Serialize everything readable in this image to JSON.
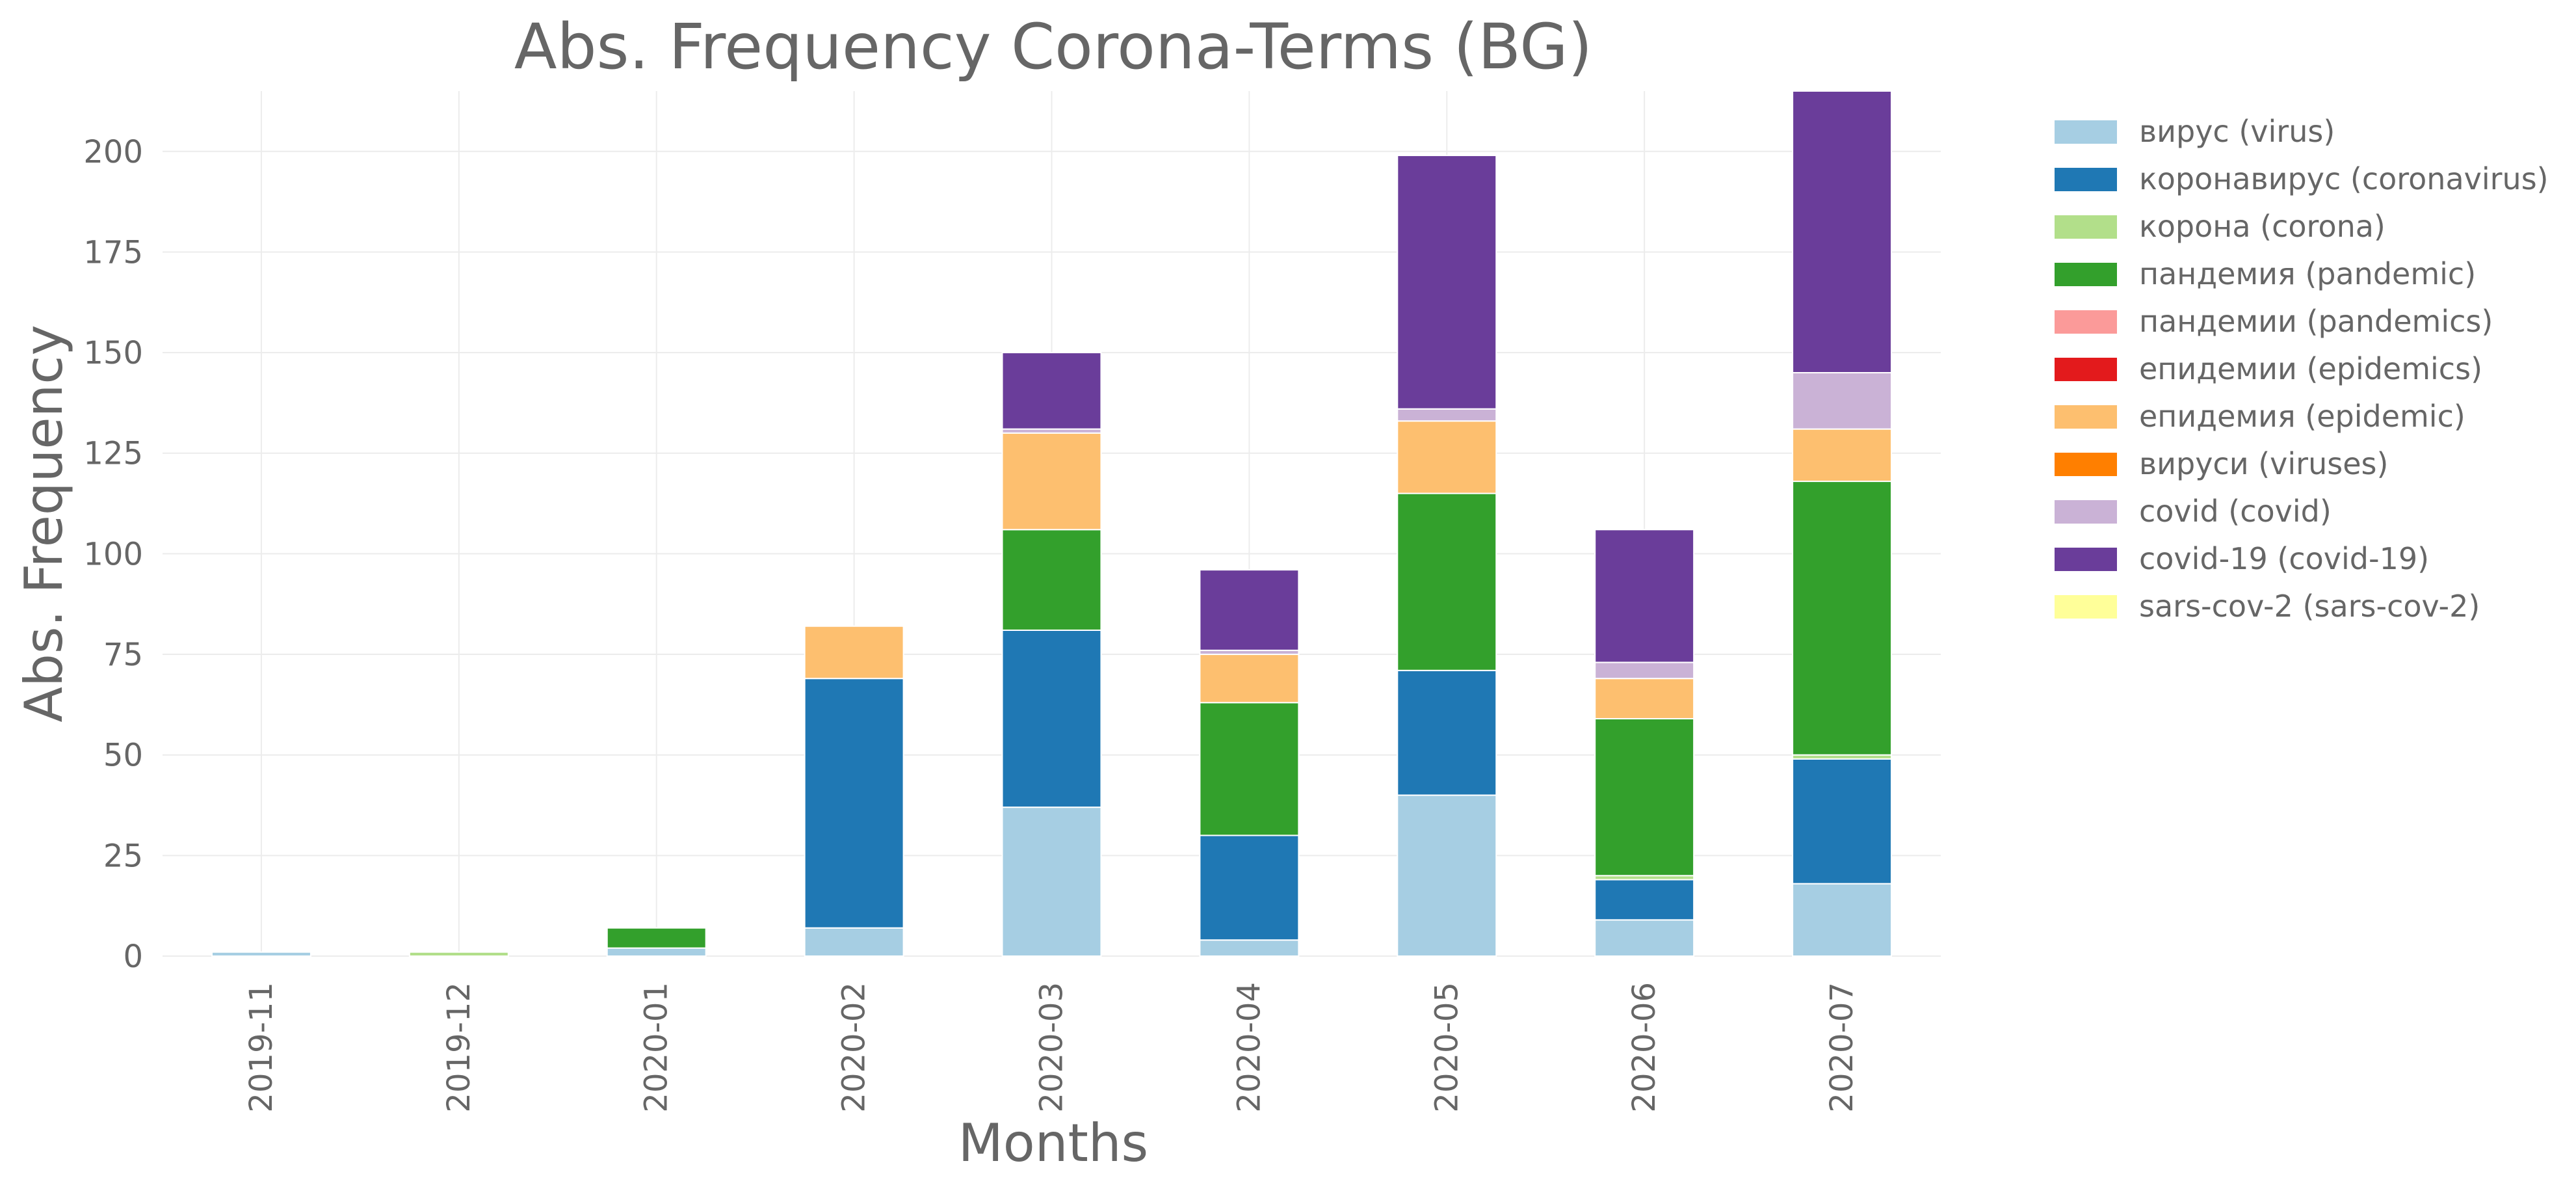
{
  "chart_data": {
    "type": "bar",
    "stacked": true,
    "title": "Abs. Frequency Corona-Terms (BG)",
    "xlabel": "Months",
    "ylabel": "Abs. Frequency",
    "ylim": [
      0,
      215
    ],
    "yticks": [
      0,
      25,
      50,
      75,
      100,
      125,
      150,
      175,
      200
    ],
    "grid": true,
    "legend_position": "right",
    "categories": [
      "2019-11",
      "2019-12",
      "2020-01",
      "2020-02",
      "2020-03",
      "2020-04",
      "2020-05",
      "2020-06",
      "2020-07"
    ],
    "series": [
      {
        "name": "вирус (virus)",
        "color": "#a6cee3",
        "values": [
          1,
          0,
          2,
          7,
          37,
          4,
          40,
          9,
          18
        ]
      },
      {
        "name": "коронавирус (coronavirus)",
        "color": "#1f78b4",
        "values": [
          0,
          0,
          0,
          62,
          44,
          26,
          31,
          10,
          31
        ]
      },
      {
        "name": "корона (corona)",
        "color": "#b2df8a",
        "values": [
          0,
          1,
          0,
          0,
          0,
          0,
          0,
          1,
          1
        ]
      },
      {
        "name": "пандемия (pandemic)",
        "color": "#33a02c",
        "values": [
          0,
          0,
          5,
          0,
          25,
          33,
          44,
          39,
          68
        ]
      },
      {
        "name": "пандемии (pandemics)",
        "color": "#fb9a99",
        "values": [
          0,
          0,
          0,
          0,
          0,
          0,
          0,
          0,
          0
        ]
      },
      {
        "name": "епидемии (epidemics)",
        "color": "#e31a1c",
        "values": [
          0,
          0,
          0,
          0,
          0,
          0,
          0,
          0,
          0
        ]
      },
      {
        "name": "епидемия (epidemic)",
        "color": "#fdbf6f",
        "values": [
          0,
          0,
          0,
          13,
          24,
          12,
          18,
          10,
          13
        ]
      },
      {
        "name": "вируси (viruses)",
        "color": "#ff7f00",
        "values": [
          0,
          0,
          0,
          0,
          0,
          0,
          0,
          0,
          0
        ]
      },
      {
        "name": "covid (covid)",
        "color": "#cab2d6",
        "values": [
          0,
          0,
          0,
          0,
          1,
          1,
          3,
          4,
          14
        ]
      },
      {
        "name": "covid-19 (covid-19)",
        "color": "#6a3d9a",
        "values": [
          0,
          0,
          0,
          0,
          19,
          20,
          63,
          33,
          70
        ]
      },
      {
        "name": "sars-cov-2 (sars-cov-2)",
        "color": "#ffff99",
        "values": [
          0,
          0,
          0,
          0,
          0,
          0,
          0,
          0,
          0
        ]
      }
    ]
  }
}
